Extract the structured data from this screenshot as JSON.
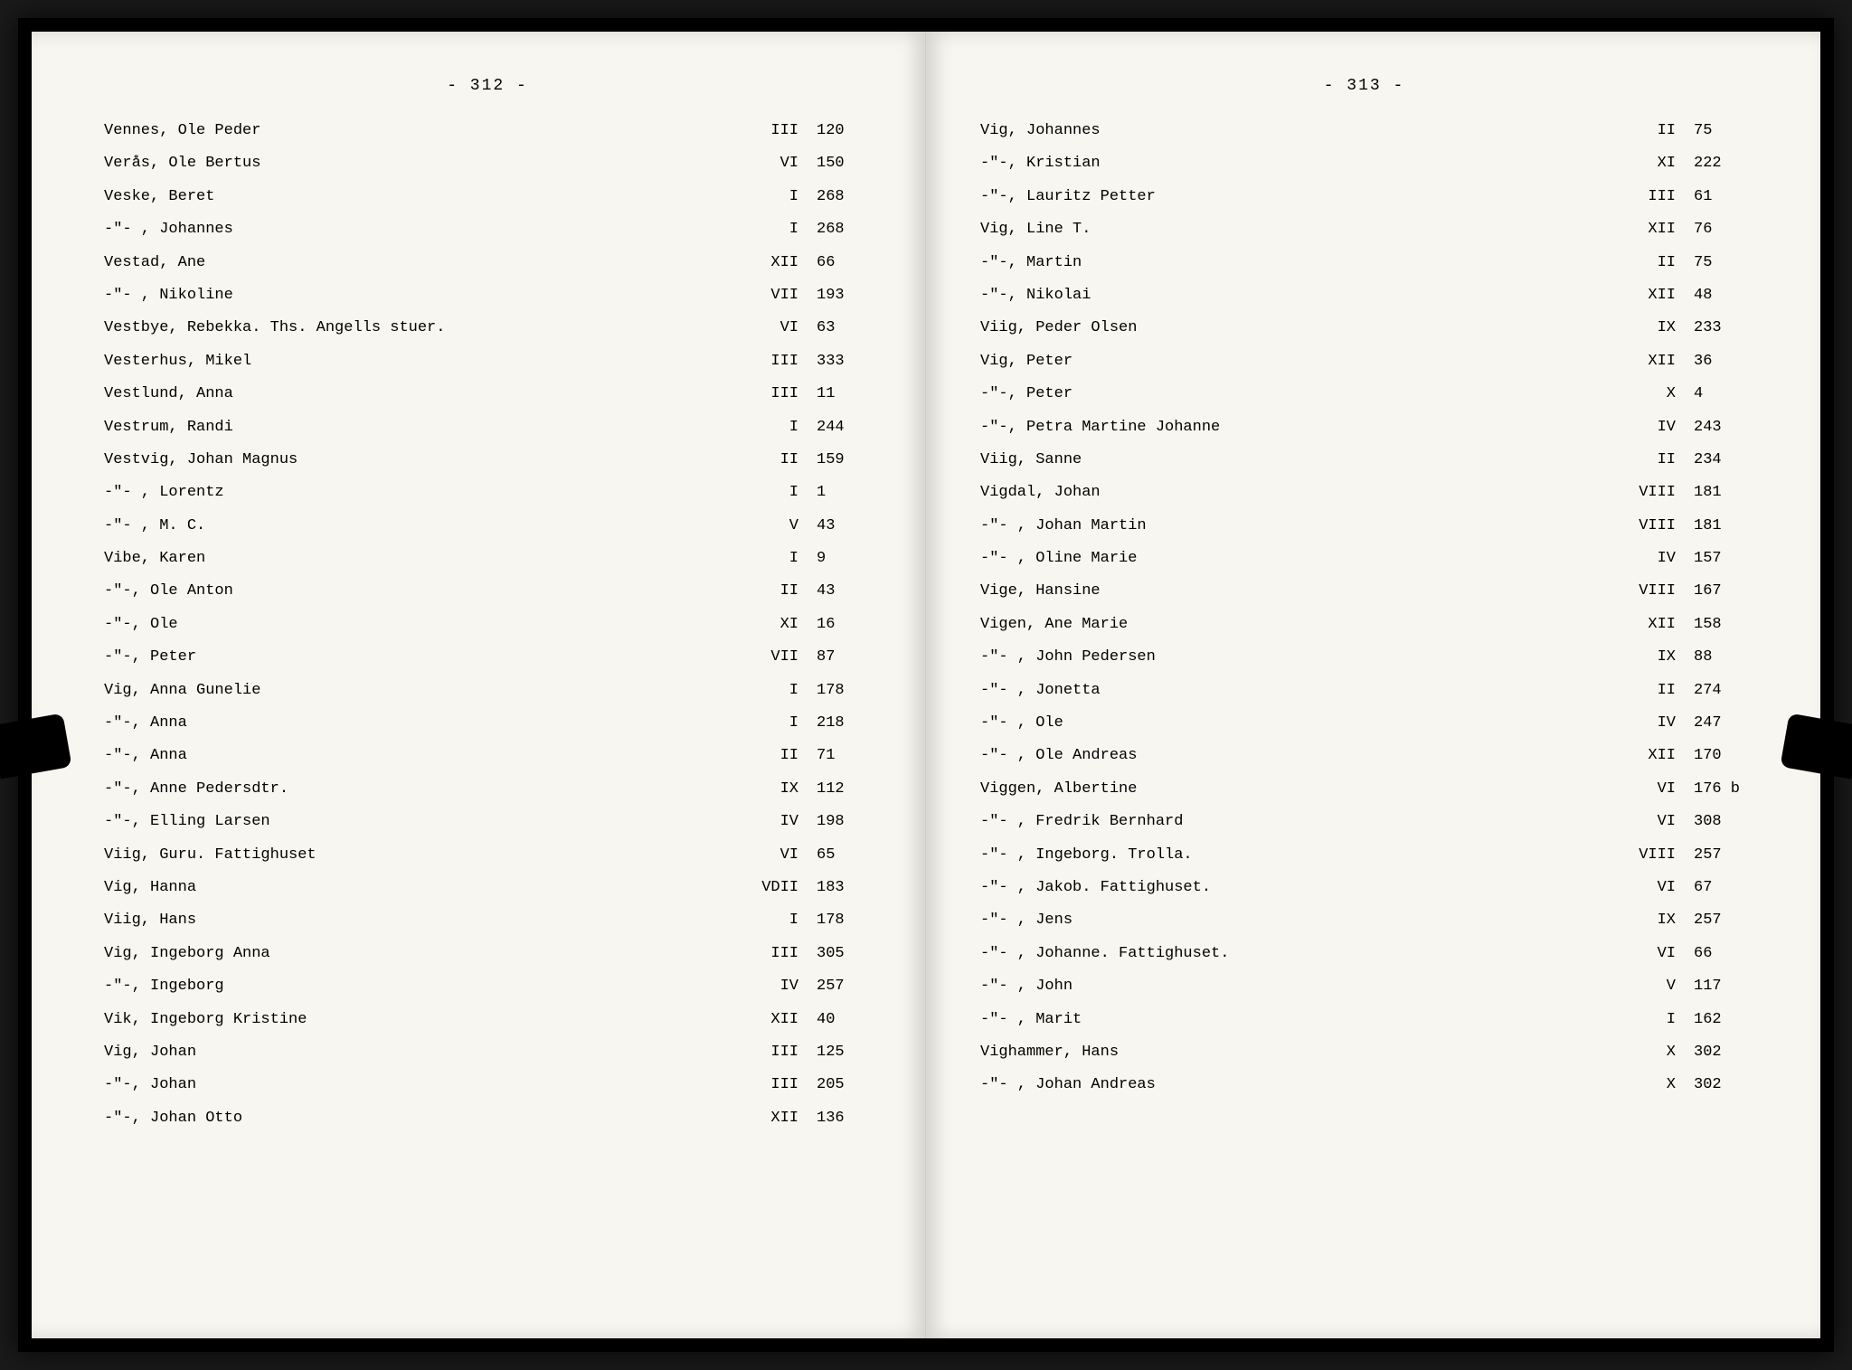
{
  "leftPage": {
    "pageNumber": "- 312 -",
    "entries": [
      {
        "name": "Vennes, Ole Peder",
        "vol": "III",
        "num": "120"
      },
      {
        "name": "Verås, Ole Bertus",
        "vol": "VI",
        "num": "150"
      },
      {
        "name": "Veske, Beret",
        "vol": "I",
        "num": "268"
      },
      {
        "name": "-\"- , Johannes",
        "vol": "I",
        "num": "268"
      },
      {
        "name": "Vestad, Ane",
        "vol": "XII",
        "num": "66"
      },
      {
        "name": "-\"- , Nikoline",
        "vol": "VII",
        "num": "193"
      },
      {
        "name": "Vestbye, Rebekka. Ths. Angells stuer.",
        "vol": "VI",
        "num": "63"
      },
      {
        "name": "Vesterhus, Mikel",
        "vol": "III",
        "num": "333"
      },
      {
        "name": "Vestlund, Anna",
        "vol": "III",
        "num": "11"
      },
      {
        "name": "Vestrum, Randi",
        "vol": "I",
        "num": "244"
      },
      {
        "name": "Vestvig, Johan Magnus",
        "vol": "II",
        "num": "159"
      },
      {
        "name": "-\"- , Lorentz",
        "vol": "I",
        "num": "1"
      },
      {
        "name": "-\"- , M. C.",
        "vol": "V",
        "num": "43"
      },
      {
        "name": "Vibe, Karen",
        "vol": "I",
        "num": "9"
      },
      {
        "name": "-\"-, Ole Anton",
        "vol": "II",
        "num": "43"
      },
      {
        "name": "-\"-, Ole",
        "vol": "XI",
        "num": "16"
      },
      {
        "name": "-\"-, Peter",
        "vol": "VII",
        "num": "87"
      },
      {
        "name": "Vig, Anna Gunelie",
        "vol": "I",
        "num": "178"
      },
      {
        "name": "-\"-, Anna",
        "vol": "I",
        "num": "218"
      },
      {
        "name": "-\"-, Anna",
        "vol": "II",
        "num": "71"
      },
      {
        "name": "-\"-, Anne Pedersdtr.",
        "vol": "IX",
        "num": "112"
      },
      {
        "name": "-\"-, Elling Larsen",
        "vol": "IV",
        "num": "198"
      },
      {
        "name": "Viig, Guru. Fattighuset",
        "vol": "VI",
        "num": "65"
      },
      {
        "name": "Vig, Hanna",
        "vol": "VDII",
        "num": "183"
      },
      {
        "name": "Viig, Hans",
        "vol": "I",
        "num": "178"
      },
      {
        "name": "Vig, Ingeborg Anna",
        "vol": "III",
        "num": "305"
      },
      {
        "name": "-\"-, Ingeborg",
        "vol": "IV",
        "num": "257"
      },
      {
        "name": "Vik, Ingeborg Kristine",
        "vol": "XII",
        "num": "40"
      },
      {
        "name": "Vig, Johan",
        "vol": "III",
        "num": "125"
      },
      {
        "name": "-\"-, Johan",
        "vol": "III",
        "num": "205"
      },
      {
        "name": "-\"-, Johan Otto",
        "vol": "XII",
        "num": "136"
      }
    ]
  },
  "rightPage": {
    "pageNumber": "- 313 -",
    "entries": [
      {
        "name": "Vig, Johannes",
        "vol": "II",
        "num": "75"
      },
      {
        "name": "-\"-, Kristian",
        "vol": "XI",
        "num": "222"
      },
      {
        "name": "-\"-, Lauritz Petter",
        "vol": "III",
        "num": "61"
      },
      {
        "name": "Vig, Line T.",
        "vol": "XII",
        "num": "76"
      },
      {
        "name": "-\"-, Martin",
        "vol": "II",
        "num": "75"
      },
      {
        "name": "-\"-, Nikolai",
        "vol": "XII",
        "num": "48"
      },
      {
        "name": "Viig, Peder Olsen",
        "vol": "IX",
        "num": "233"
      },
      {
        "name": "Vig, Peter",
        "vol": "XII",
        "num": "36"
      },
      {
        "name": "-\"-, Peter",
        "vol": "X",
        "num": "4"
      },
      {
        "name": "-\"-, Petra Martine Johanne",
        "vol": "IV",
        "num": "243"
      },
      {
        "name": "Viig, Sanne",
        "vol": "II",
        "num": "234"
      },
      {
        "name": "Vigdal, Johan",
        "vol": "VIII",
        "num": "181"
      },
      {
        "name": "-\"- , Johan Martin",
        "vol": "VIII",
        "num": "181"
      },
      {
        "name": "-\"- , Oline Marie",
        "vol": "IV",
        "num": "157"
      },
      {
        "name": "Vige, Hansine",
        "vol": "VIII",
        "num": "167"
      },
      {
        "name": "Vigen, Ane Marie",
        "vol": "XII",
        "num": "158"
      },
      {
        "name": "-\"- , John Pedersen",
        "vol": "IX",
        "num": "88"
      },
      {
        "name": "-\"- , Jonetta",
        "vol": "II",
        "num": "274"
      },
      {
        "name": "-\"- , Ole",
        "vol": "IV",
        "num": "247"
      },
      {
        "name": "-\"- , Ole Andreas",
        "vol": "XII",
        "num": "170"
      },
      {
        "name": "Viggen, Albertine",
        "vol": "VI",
        "num": "176 b"
      },
      {
        "name": "-\"- , Fredrik Bernhard",
        "vol": "VI",
        "num": "308"
      },
      {
        "name": "-\"- , Ingeborg. Trolla.",
        "vol": "VIII",
        "num": "257"
      },
      {
        "name": "-\"- , Jakob. Fattighuset.",
        "vol": "VI",
        "num": "67"
      },
      {
        "name": "-\"- , Jens",
        "vol": "IX",
        "num": "257"
      },
      {
        "name": "-\"- , Johanne. Fattighuset.",
        "vol": "VI",
        "num": "66"
      },
      {
        "name": "-\"- , John",
        "vol": "V",
        "num": "117"
      },
      {
        "name": "-\"- , Marit",
        "vol": "I",
        "num": "162"
      },
      {
        "name": "Vighammer, Hans",
        "vol": "X",
        "num": "302"
      },
      {
        "name": "-\"- , Johan Andreas",
        "vol": "X",
        "num": "302"
      }
    ]
  }
}
